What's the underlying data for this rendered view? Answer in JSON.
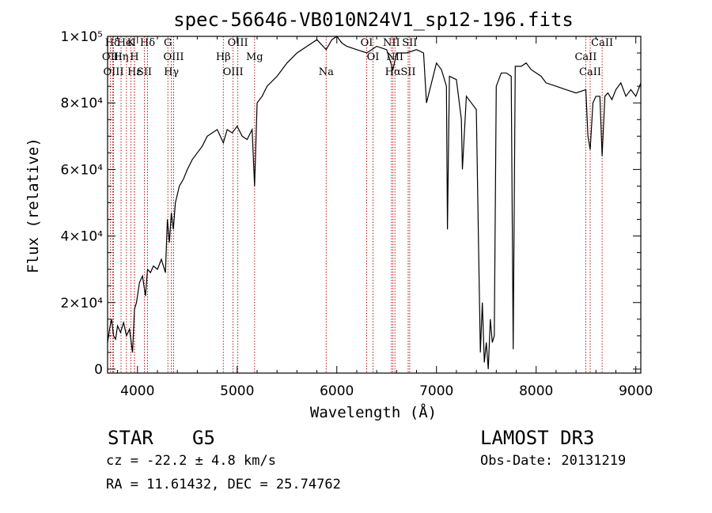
{
  "figure": {
    "title": "spec-56646-VB010N24V1_sp12-196.fits",
    "classification": "STAR",
    "subclass": "G5",
    "survey": "LAMOST DR3",
    "redshift": "cz = -22.2 ± 4.8 km/s",
    "obs_date": "Obs-Date: 20131219",
    "coords": "RA =  11.61432, DEC =  25.74762"
  },
  "chart_data": {
    "type": "line",
    "title": "spec-56646-VB010N24V1_sp12-196.fits",
    "xlabel": "Wavelength (Å)",
    "ylabel": "Flux (relative)",
    "xlim": [
      3700,
      9050
    ],
    "ylim": [
      -1200,
      100000
    ],
    "x_ticks": [
      4000,
      5000,
      6000,
      7000,
      8000,
      9000
    ],
    "x_tick_labels": [
      "4000",
      "5000",
      "6000",
      "7000",
      "8000",
      "9000"
    ],
    "y_ticks": [
      0,
      20000,
      40000,
      60000,
      80000,
      100000
    ],
    "y_tick_labels": [
      "0",
      "2×10⁴",
      "4×10⁴",
      "6×10⁴",
      "8×10⁴",
      "1×10⁵"
    ],
    "spectrum": {
      "name": "flux",
      "x": [
        3700,
        3720,
        3740,
        3760,
        3780,
        3800,
        3830,
        3860,
        3890,
        3920,
        3950,
        3970,
        3990,
        4020,
        4050,
        4080,
        4101,
        4130,
        4160,
        4200,
        4240,
        4280,
        4300,
        4320,
        4340,
        4360,
        4380,
        4420,
        4460,
        4500,
        4550,
        4600,
        4650,
        4700,
        4750,
        4800,
        4861,
        4900,
        4950,
        5000,
        5050,
        5100,
        5150,
        5175,
        5200,
        5250,
        5300,
        5400,
        5500,
        5600,
        5700,
        5800,
        5893,
        5950,
        6000,
        6050,
        6100,
        6200,
        6300,
        6400,
        6500,
        6563,
        6600,
        6700,
        6800,
        6870,
        6900,
        7000,
        7050,
        7100,
        7110,
        7130,
        7200,
        7250,
        7260,
        7300,
        7350,
        7400,
        7420,
        7440,
        7460,
        7480,
        7500,
        7520,
        7540,
        7560,
        7580,
        7600,
        7650,
        7700,
        7750,
        7770,
        7790,
        7850,
        7900,
        7950,
        8000,
        8050,
        8100,
        8200,
        8300,
        8400,
        8498,
        8520,
        8542,
        8570,
        8600,
        8640,
        8662,
        8690,
        8720,
        8760,
        8800,
        8850,
        8900,
        8950,
        9000,
        9050
      ],
      "y": [
        8000,
        12000,
        15000,
        10000,
        9000,
        13000,
        11000,
        14000,
        10000,
        12000,
        5000,
        18000,
        20000,
        26000,
        28000,
        22000,
        30000,
        29000,
        31000,
        30000,
        33000,
        29000,
        45000,
        38000,
        47000,
        42000,
        50000,
        55000,
        57000,
        60000,
        63000,
        65000,
        67000,
        70000,
        71000,
        72000,
        68000,
        72000,
        71000,
        73000,
        70000,
        69000,
        72000,
        55000,
        80000,
        82000,
        85000,
        88000,
        92000,
        95000,
        97000,
        99000,
        96000,
        99000,
        100000,
        98000,
        97000,
        96000,
        95000,
        97000,
        96000,
        90000,
        95000,
        95000,
        96000,
        95000,
        80000,
        92000,
        90000,
        85000,
        42000,
        88000,
        87000,
        75000,
        60000,
        82000,
        80000,
        78000,
        40000,
        5000,
        20000,
        2000,
        8000,
        0,
        15000,
        8000,
        10000,
        85000,
        89000,
        89000,
        88000,
        6000,
        91000,
        91000,
        92000,
        90000,
        89000,
        88000,
        86000,
        85000,
        84000,
        83000,
        84000,
        70000,
        66000,
        80000,
        82000,
        82000,
        64000,
        82000,
        83000,
        81000,
        84000,
        86000,
        82000,
        84000,
        82000,
        86000
      ]
    },
    "line_markers": [
      {
        "name": "Hδ",
        "x": 3750
      },
      {
        "name": "OII",
        "x": 3727
      },
      {
        "name": "OIII",
        "x": 3760
      },
      {
        "name": "K",
        "x": 3934
      },
      {
        "name": "H",
        "x": 3969
      },
      {
        "name": "Hε",
        "x": 3970
      },
      {
        "name": "HeI",
        "x": 3889
      },
      {
        "name": "Hη",
        "x": 3835
      },
      {
        "name": "SII",
        "x": 4069
      },
      {
        "name": "Hδ",
        "x": 4101
      },
      {
        "name": "OIII",
        "x": 4363
      },
      {
        "name": "Hγ",
        "x": 4340
      },
      {
        "name": "G",
        "x": 4305
      },
      {
        "name": "Hβ",
        "x": 4861
      },
      {
        "name": "OIII",
        "x": 4959
      },
      {
        "name": "OIII",
        "x": 5007
      },
      {
        "name": "Mg",
        "x": 5175
      },
      {
        "name": "Na",
        "x": 5893
      },
      {
        "name": "OI",
        "x": 6300
      },
      {
        "name": "OI",
        "x": 6363
      },
      {
        "name": "Hα",
        "x": 6563
      },
      {
        "name": "NII",
        "x": 6548
      },
      {
        "name": "NII",
        "x": 6583
      },
      {
        "name": "SII",
        "x": 6716
      },
      {
        "name": "SII",
        "x": 6731
      },
      {
        "name": "CaII",
        "x": 8498
      },
      {
        "name": "CaII",
        "x": 8542
      },
      {
        "name": "CaII",
        "x": 8662
      }
    ],
    "colors": {
      "line": "#000000",
      "marker": "#b00000"
    }
  }
}
